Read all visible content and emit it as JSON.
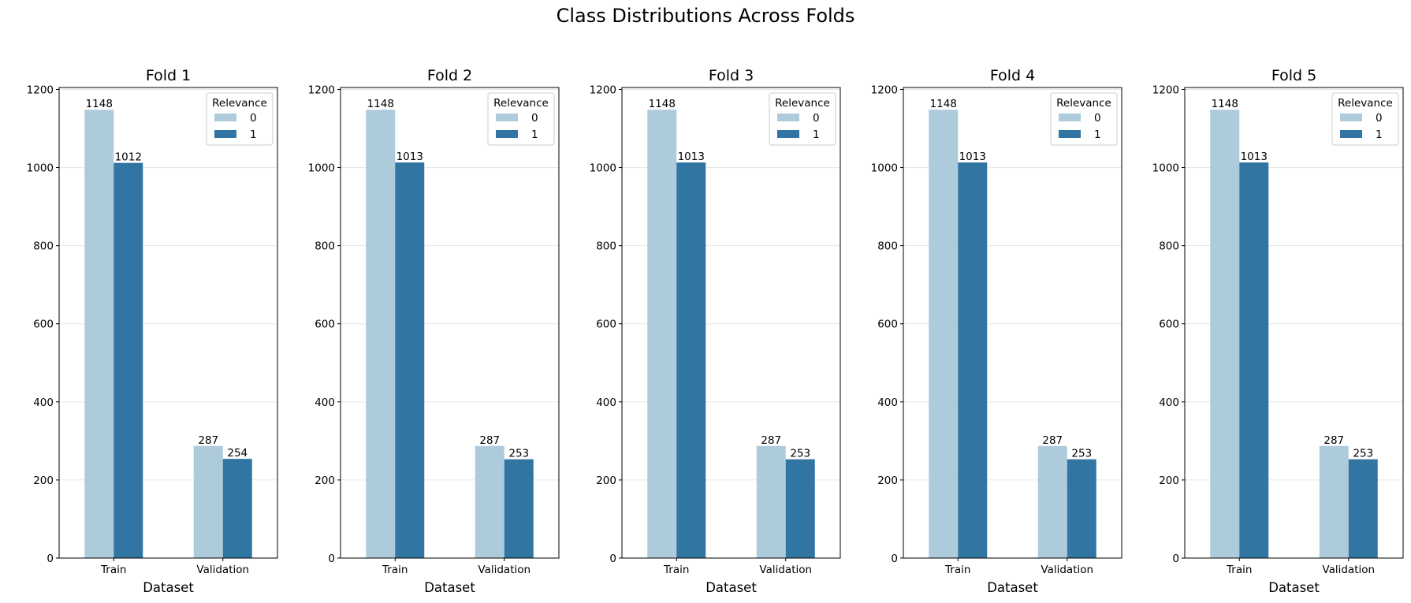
{
  "figure_title": "Class Distributions Across Folds",
  "colors": {
    "class_0": "#aecbdc",
    "class_1": "#3175a3",
    "grid": "#e6e6e6",
    "axis": "#000000"
  },
  "chart_data": [
    {
      "type": "bar",
      "title": "Fold 1",
      "categories": [
        "Train",
        "Validation"
      ],
      "series": [
        {
          "name": "0",
          "values": [
            1148,
            287
          ]
        },
        {
          "name": "1",
          "values": [
            1012,
            254
          ]
        }
      ],
      "xlabel": "Dataset",
      "ylabel": "",
      "ylim": [
        0,
        1205
      ],
      "yticks": [
        0,
        200,
        400,
        600,
        800,
        1000,
        1200
      ],
      "legend_title": "Relevance",
      "legend_position": "top-right",
      "grid": "y"
    },
    {
      "type": "bar",
      "title": "Fold 2",
      "categories": [
        "Train",
        "Validation"
      ],
      "series": [
        {
          "name": "0",
          "values": [
            1148,
            287
          ]
        },
        {
          "name": "1",
          "values": [
            1013,
            253
          ]
        }
      ],
      "xlabel": "Dataset",
      "ylabel": "",
      "ylim": [
        0,
        1205
      ],
      "yticks": [
        0,
        200,
        400,
        600,
        800,
        1000,
        1200
      ],
      "legend_title": "Relevance",
      "legend_position": "top-right",
      "grid": "y"
    },
    {
      "type": "bar",
      "title": "Fold 3",
      "categories": [
        "Train",
        "Validation"
      ],
      "series": [
        {
          "name": "0",
          "values": [
            1148,
            287
          ]
        },
        {
          "name": "1",
          "values": [
            1013,
            253
          ]
        }
      ],
      "xlabel": "Dataset",
      "ylabel": "",
      "ylim": [
        0,
        1205
      ],
      "yticks": [
        0,
        200,
        400,
        600,
        800,
        1000,
        1200
      ],
      "legend_title": "Relevance",
      "legend_position": "top-right",
      "grid": "y"
    },
    {
      "type": "bar",
      "title": "Fold 4",
      "categories": [
        "Train",
        "Validation"
      ],
      "series": [
        {
          "name": "0",
          "values": [
            1148,
            287
          ]
        },
        {
          "name": "1",
          "values": [
            1013,
            253
          ]
        }
      ],
      "xlabel": "Dataset",
      "ylabel": "",
      "ylim": [
        0,
        1205
      ],
      "yticks": [
        0,
        200,
        400,
        600,
        800,
        1000,
        1200
      ],
      "legend_title": "Relevance",
      "legend_position": "top-right",
      "grid": "y"
    },
    {
      "type": "bar",
      "title": "Fold 5",
      "categories": [
        "Train",
        "Validation"
      ],
      "series": [
        {
          "name": "0",
          "values": [
            1148,
            287
          ]
        },
        {
          "name": "1",
          "values": [
            1013,
            253
          ]
        }
      ],
      "xlabel": "Dataset",
      "ylabel": "",
      "ylim": [
        0,
        1205
      ],
      "yticks": [
        0,
        200,
        400,
        600,
        800,
        1000,
        1200
      ],
      "legend_title": "Relevance",
      "legend_position": "top-right",
      "grid": "y"
    }
  ]
}
